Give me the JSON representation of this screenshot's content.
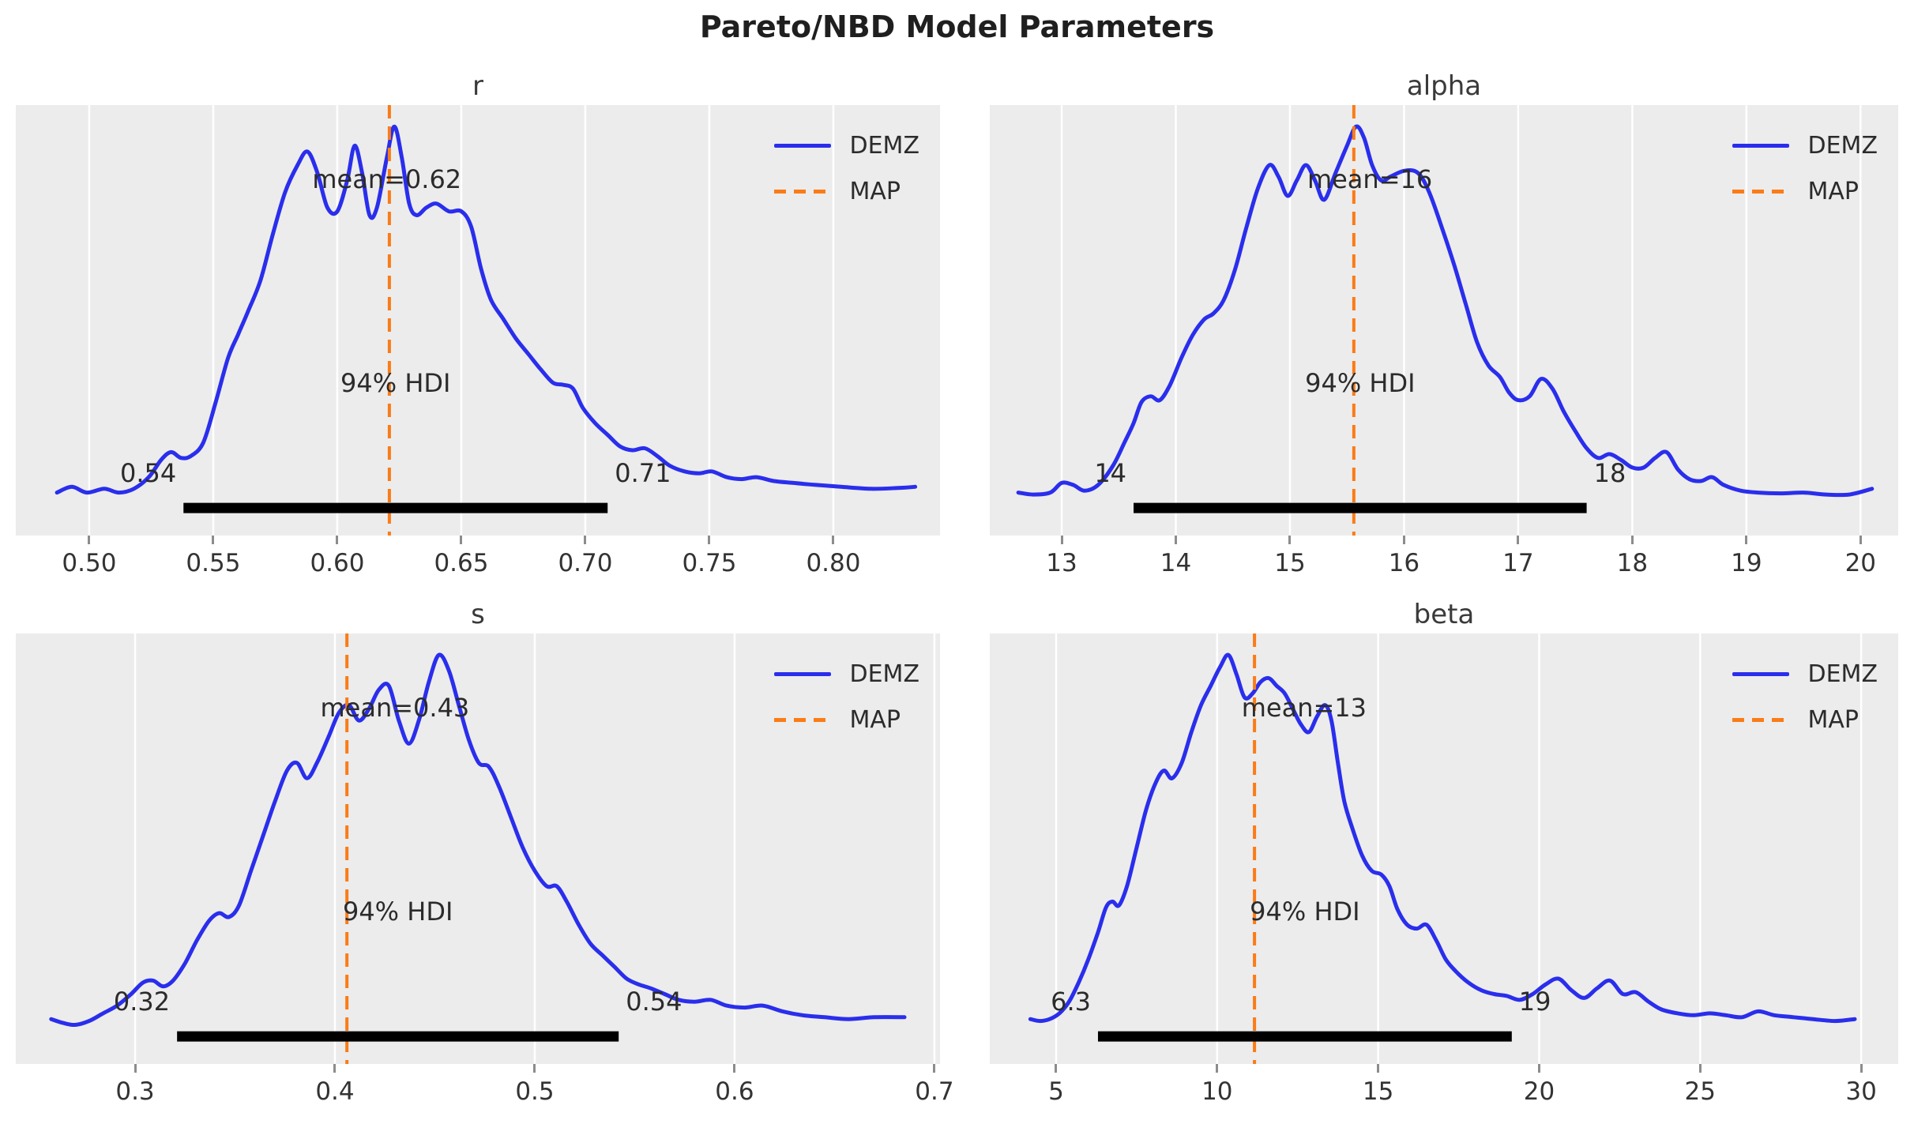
{
  "figure": {
    "title": "Pareto/NBD Model Parameters"
  },
  "style": {
    "curve_color": "#2a2eec",
    "map_color": "#fa7c17",
    "hdi_bar_color": "#000000",
    "plot_bg": "#ececec",
    "grid_color": "#ffffff",
    "text_color": "#2b2b2b"
  },
  "chart_data": [
    {
      "type": "line",
      "subtype": "kde-posterior",
      "title": "r",
      "series": [
        {
          "name": "DEMZ",
          "kind": "kde-line"
        },
        {
          "name": "MAP",
          "kind": "dashed-vline"
        }
      ],
      "legend_position": "upper right",
      "grid": true,
      "xlim": [
        0.4704,
        0.843
      ],
      "x_ticks": [
        0.5,
        0.55,
        0.6,
        0.65,
        0.7,
        0.75,
        0.8
      ],
      "x_tick_labels": [
        "0.50",
        "0.55",
        "0.60",
        "0.65",
        "0.70",
        "0.75",
        "0.80"
      ],
      "mean": {
        "label": "mean=0.62",
        "value": 0.62
      },
      "map_value": 0.621,
      "hdi": {
        "label": "94% HDI",
        "lower": 0.538,
        "upper": 0.709,
        "lower_label": "0.54",
        "upper_label": "0.71"
      },
      "density": {
        "x": [
          0.487,
          0.493,
          0.499,
          0.506,
          0.512,
          0.518,
          0.524,
          0.529,
          0.533,
          0.537,
          0.541,
          0.546,
          0.551,
          0.556,
          0.56,
          0.564,
          0.569,
          0.574,
          0.579,
          0.584,
          0.588,
          0.592,
          0.596,
          0.6,
          0.604,
          0.607,
          0.61,
          0.613,
          0.616,
          0.62,
          0.623,
          0.626,
          0.629,
          0.632,
          0.636,
          0.64,
          0.645,
          0.65,
          0.654,
          0.658,
          0.662,
          0.667,
          0.672,
          0.677,
          0.682,
          0.687,
          0.691,
          0.695,
          0.699,
          0.704,
          0.709,
          0.714,
          0.719,
          0.724,
          0.729,
          0.734,
          0.74,
          0.746,
          0.751,
          0.757,
          0.763,
          0.769,
          0.776,
          0.784,
          0.793,
          0.803,
          0.815,
          0.826,
          0.833
        ],
        "y": [
          0.05,
          0.065,
          0.05,
          0.06,
          0.05,
          0.06,
          0.09,
          0.135,
          0.155,
          0.14,
          0.145,
          0.18,
          0.285,
          0.4,
          0.46,
          0.52,
          0.6,
          0.72,
          0.83,
          0.9,
          0.935,
          0.88,
          0.79,
          0.78,
          0.86,
          0.95,
          0.88,
          0.77,
          0.79,
          0.92,
          1.0,
          0.92,
          0.8,
          0.77,
          0.79,
          0.8,
          0.78,
          0.78,
          0.74,
          0.63,
          0.55,
          0.5,
          0.45,
          0.41,
          0.37,
          0.335,
          0.33,
          0.32,
          0.27,
          0.23,
          0.2,
          0.17,
          0.16,
          0.165,
          0.145,
          0.12,
          0.105,
          0.1,
          0.105,
          0.09,
          0.085,
          0.09,
          0.08,
          0.075,
          0.07,
          0.065,
          0.06,
          0.062,
          0.065
        ]
      }
    },
    {
      "type": "line",
      "subtype": "kde-posterior",
      "title": "alpha",
      "series": [
        {
          "name": "DEMZ",
          "kind": "kde-line"
        },
        {
          "name": "MAP",
          "kind": "dashed-vline"
        }
      ],
      "legend_position": "upper right",
      "grid": true,
      "xlim": [
        12.37,
        20.33
      ],
      "x_ticks": [
        13,
        14,
        15,
        16,
        17,
        18,
        19,
        20
      ],
      "x_tick_labels": [
        "13",
        "14",
        "15",
        "16",
        "17",
        "18",
        "19",
        "20"
      ],
      "mean": {
        "label": "mean=16",
        "value": 15.7
      },
      "map_value": 15.56,
      "hdi": {
        "label": "94% HDI",
        "lower": 13.63,
        "upper": 17.6,
        "lower_label": "14",
        "upper_label": "18"
      },
      "density": {
        "x": [
          12.62,
          12.75,
          12.9,
          13.0,
          13.1,
          13.2,
          13.32,
          13.45,
          13.55,
          13.63,
          13.7,
          13.78,
          13.86,
          13.95,
          14.05,
          14.15,
          14.25,
          14.33,
          14.42,
          14.52,
          14.62,
          14.72,
          14.82,
          14.9,
          14.98,
          15.06,
          15.14,
          15.22,
          15.3,
          15.4,
          15.5,
          15.58,
          15.65,
          15.72,
          15.8,
          15.88,
          16.0,
          16.12,
          16.22,
          16.34,
          16.44,
          16.54,
          16.64,
          16.74,
          16.84,
          16.92,
          17.0,
          17.1,
          17.2,
          17.3,
          17.4,
          17.5,
          17.6,
          17.7,
          17.8,
          17.9,
          18.0,
          18.1,
          18.2,
          18.3,
          18.4,
          18.5,
          18.6,
          18.7,
          18.8,
          18.95,
          19.1,
          19.3,
          19.5,
          19.7,
          19.9,
          20.1
        ],
        "y": [
          0.05,
          0.045,
          0.05,
          0.075,
          0.07,
          0.055,
          0.07,
          0.12,
          0.18,
          0.23,
          0.285,
          0.3,
          0.29,
          0.33,
          0.4,
          0.46,
          0.5,
          0.515,
          0.55,
          0.63,
          0.74,
          0.84,
          0.9,
          0.87,
          0.82,
          0.86,
          0.9,
          0.86,
          0.81,
          0.88,
          0.95,
          1.0,
          0.97,
          0.9,
          0.86,
          0.87,
          0.885,
          0.88,
          0.83,
          0.73,
          0.64,
          0.54,
          0.44,
          0.38,
          0.35,
          0.31,
          0.29,
          0.3,
          0.345,
          0.32,
          0.26,
          0.21,
          0.165,
          0.14,
          0.15,
          0.135,
          0.115,
          0.115,
          0.14,
          0.155,
          0.11,
          0.085,
          0.08,
          0.09,
          0.07,
          0.055,
          0.05,
          0.048,
          0.05,
          0.045,
          0.045,
          0.06
        ]
      }
    },
    {
      "type": "line",
      "subtype": "kde-posterior",
      "title": "s",
      "series": [
        {
          "name": "DEMZ",
          "kind": "kde-line"
        },
        {
          "name": "MAP",
          "kind": "dashed-vline"
        }
      ],
      "legend_position": "upper right",
      "grid": true,
      "xlim": [
        0.2403,
        0.7028
      ],
      "x_ticks": [
        0.3,
        0.4,
        0.5,
        0.6,
        0.7
      ],
      "x_tick_labels": [
        "0.3",
        "0.4",
        "0.5",
        "0.6",
        "0.7"
      ],
      "mean": {
        "label": "mean=0.43",
        "value": 0.43
      },
      "map_value": 0.406,
      "hdi": {
        "label": "94% HDI",
        "lower": 0.321,
        "upper": 0.542,
        "lower_label": "0.32",
        "upper_label": "0.54"
      },
      "density": {
        "x": [
          0.258,
          0.264,
          0.27,
          0.277,
          0.284,
          0.291,
          0.298,
          0.304,
          0.309,
          0.314,
          0.319,
          0.325,
          0.331,
          0.337,
          0.342,
          0.347,
          0.352,
          0.358,
          0.364,
          0.37,
          0.376,
          0.381,
          0.386,
          0.391,
          0.397,
          0.402,
          0.407,
          0.412,
          0.417,
          0.422,
          0.427,
          0.432,
          0.437,
          0.442,
          0.447,
          0.452,
          0.457,
          0.462,
          0.467,
          0.472,
          0.477,
          0.482,
          0.488,
          0.494,
          0.5,
          0.506,
          0.511,
          0.516,
          0.522,
          0.528,
          0.534,
          0.54,
          0.546,
          0.552,
          0.558,
          0.565,
          0.572,
          0.58,
          0.588,
          0.596,
          0.605,
          0.614,
          0.624,
          0.634,
          0.645,
          0.657,
          0.67,
          0.685
        ],
        "y": [
          0.055,
          0.045,
          0.04,
          0.05,
          0.07,
          0.09,
          0.12,
          0.15,
          0.155,
          0.14,
          0.155,
          0.2,
          0.26,
          0.31,
          0.33,
          0.32,
          0.35,
          0.44,
          0.53,
          0.62,
          0.7,
          0.72,
          0.68,
          0.72,
          0.79,
          0.85,
          0.87,
          0.83,
          0.86,
          0.91,
          0.92,
          0.83,
          0.77,
          0.83,
          0.93,
          1.0,
          0.96,
          0.87,
          0.78,
          0.72,
          0.71,
          0.66,
          0.58,
          0.5,
          0.44,
          0.4,
          0.4,
          0.36,
          0.3,
          0.25,
          0.22,
          0.19,
          0.16,
          0.145,
          0.135,
          0.12,
          0.105,
          0.1,
          0.105,
          0.09,
          0.085,
          0.09,
          0.075,
          0.065,
          0.06,
          0.055,
          0.06,
          0.06
        ]
      }
    },
    {
      "type": "line",
      "subtype": "kde-posterior",
      "title": "beta",
      "series": [
        {
          "name": "DEMZ",
          "kind": "kde-line"
        },
        {
          "name": "MAP",
          "kind": "dashed-vline"
        }
      ],
      "legend_position": "upper right",
      "grid": true,
      "xlim": [
        2.94,
        31.15
      ],
      "x_ticks": [
        5,
        10,
        15,
        20,
        25,
        30
      ],
      "x_tick_labels": [
        "5",
        "10",
        "15",
        "20",
        "25",
        "30"
      ],
      "mean": {
        "label": "mean=13",
        "value": 12.7
      },
      "map_value": 11.16,
      "hdi": {
        "label": "94% HDI",
        "lower": 6.3,
        "upper": 19.15,
        "lower_label": "6.3",
        "upper_label": "19"
      },
      "density": {
        "x": [
          4.2,
          4.5,
          4.8,
          5.1,
          5.4,
          5.7,
          6.0,
          6.3,
          6.55,
          6.75,
          6.95,
          7.2,
          7.5,
          7.8,
          8.1,
          8.35,
          8.6,
          8.9,
          9.2,
          9.5,
          9.8,
          10.1,
          10.35,
          10.6,
          10.85,
          11.1,
          11.35,
          11.6,
          11.85,
          12.1,
          12.35,
          12.6,
          12.85,
          13.1,
          13.35,
          13.55,
          13.75,
          13.95,
          14.2,
          14.5,
          14.8,
          15.1,
          15.35,
          15.6,
          15.9,
          16.2,
          16.5,
          16.8,
          17.1,
          17.4,
          17.8,
          18.2,
          18.6,
          19.0,
          19.4,
          19.8,
          20.2,
          20.6,
          21.0,
          21.4,
          21.8,
          22.2,
          22.6,
          23.0,
          23.4,
          23.8,
          24.3,
          24.8,
          25.3,
          25.8,
          26.3,
          26.8,
          27.3,
          27.9,
          28.5,
          29.2,
          29.8
        ],
        "y": [
          0.055,
          0.05,
          0.055,
          0.07,
          0.1,
          0.15,
          0.21,
          0.28,
          0.345,
          0.36,
          0.35,
          0.4,
          0.5,
          0.6,
          0.67,
          0.7,
          0.68,
          0.72,
          0.8,
          0.87,
          0.92,
          0.97,
          1.0,
          0.95,
          0.89,
          0.9,
          0.93,
          0.94,
          0.92,
          0.9,
          0.86,
          0.82,
          0.8,
          0.84,
          0.87,
          0.83,
          0.72,
          0.62,
          0.55,
          0.48,
          0.44,
          0.43,
          0.4,
          0.34,
          0.3,
          0.29,
          0.3,
          0.26,
          0.21,
          0.18,
          0.15,
          0.13,
          0.12,
          0.115,
          0.105,
          0.12,
          0.145,
          0.16,
          0.13,
          0.11,
          0.135,
          0.155,
          0.12,
          0.125,
          0.1,
          0.08,
          0.07,
          0.065,
          0.07,
          0.065,
          0.06,
          0.075,
          0.065,
          0.06,
          0.055,
          0.05,
          0.055
        ]
      }
    }
  ]
}
